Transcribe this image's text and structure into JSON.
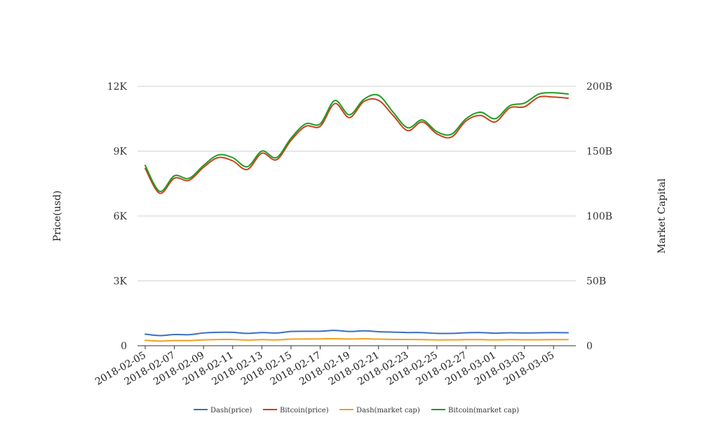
{
  "chart_data": {
    "type": "line",
    "x": [
      "2018-02-05",
      "2018-02-06",
      "2018-02-07",
      "2018-02-08",
      "2018-02-09",
      "2018-02-10",
      "2018-02-11",
      "2018-02-12",
      "2018-02-13",
      "2018-02-14",
      "2018-02-15",
      "2018-02-16",
      "2018-02-17",
      "2018-02-18",
      "2018-02-19",
      "2018-02-20",
      "2018-02-21",
      "2018-02-22",
      "2018-02-23",
      "2018-02-24",
      "2018-02-25",
      "2018-02-26",
      "2018-02-27",
      "2018-02-28",
      "2018-03-01",
      "2018-03-02",
      "2018-03-03",
      "2018-03-04",
      "2018-03-05",
      "2018-03-06"
    ],
    "x_tick_labels": [
      "2018-02-05",
      "2018-02-07",
      "2018-02-09",
      "2018-02-11",
      "2018-02-13",
      "2018-02-15",
      "2018-02-17",
      "2018-02-19",
      "2018-02-21",
      "2018-02-23",
      "2018-02-25",
      "2018-02-27",
      "2018-03-01",
      "2018-03-03",
      "2018-03-05"
    ],
    "y_left": {
      "label": "Price(usd)",
      "ylim": [
        0,
        12000
      ],
      "ticks": [
        "0",
        "3K",
        "6K",
        "9K",
        "12K"
      ]
    },
    "y_right": {
      "label": "Market Capital",
      "ylim": [
        0,
        200
      ],
      "unit": "B",
      "ticks": [
        "0",
        "50B",
        "100B",
        "150B",
        "200B"
      ]
    },
    "grid": true,
    "legend_position": "bottom",
    "series": [
      {
        "name": "Dash(price)",
        "axis": "left",
        "color": "#3b6fbf",
        "values": [
          540,
          470,
          520,
          510,
          590,
          620,
          620,
          570,
          610,
          590,
          660,
          670,
          670,
          710,
          660,
          690,
          650,
          630,
          610,
          610,
          570,
          570,
          600,
          610,
          580,
          600,
          590,
          600,
          610,
          600
        ]
      },
      {
        "name": "Bitcoin(price)",
        "axis": "left",
        "color": "#c8421a",
        "values": [
          8200,
          7050,
          7750,
          7650,
          8250,
          8700,
          8550,
          8150,
          8900,
          8600,
          9500,
          10150,
          10150,
          11200,
          10550,
          11300,
          11350,
          10650,
          9950,
          10350,
          9800,
          9650,
          10400,
          10650,
          10350,
          11000,
          11050,
          11500,
          11500,
          11450
        ]
      },
      {
        "name": "Dash(market cap)",
        "axis": "right",
        "color": "#f0a020",
        "values": [
          4.2,
          3.6,
          4.0,
          4.0,
          4.5,
          4.8,
          4.8,
          4.4,
          4.7,
          4.5,
          5.1,
          5.2,
          5.3,
          5.5,
          5.2,
          5.4,
          5.1,
          4.9,
          4.8,
          4.7,
          4.5,
          4.5,
          4.7,
          4.7,
          4.5,
          4.7,
          4.6,
          4.6,
          4.7,
          4.7
        ]
      },
      {
        "name": "Bitcoin(market cap)",
        "axis": "right",
        "color": "#1e9b22",
        "values": [
          139,
          119,
          131,
          129,
          139,
          147,
          145,
          138,
          150,
          145,
          160,
          171,
          171,
          189,
          178,
          190,
          193,
          180,
          168,
          174,
          165,
          163,
          175,
          180,
          175,
          185,
          187,
          194,
          195,
          194
        ]
      }
    ]
  }
}
